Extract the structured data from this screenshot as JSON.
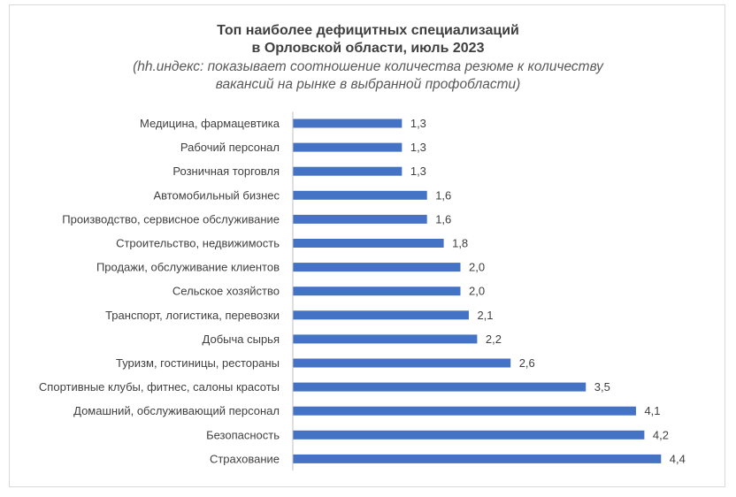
{
  "chart_data": {
    "type": "bar",
    "orientation": "horizontal",
    "title": "Топ наиболее дефицитных специализаций",
    "title_line2": "в Орловской области, июль 2023",
    "subtitle": "(hh.индекс: показывает соотношение количества резюме к количеству",
    "subtitle_line2": "вакансий на рынке в выбранной профобласти)",
    "bar_color": "#4472c4",
    "xlim": [
      0,
      4.5
    ],
    "grid": false,
    "categories": [
      "Медицина, фармацевтика",
      "Рабочий персонал",
      "Розничная торговля",
      "Автомобильный бизнес",
      "Производство, сервисное обслуживание",
      "Строительство, недвижимость",
      "Продажи, обслуживание клиентов",
      "Сельское хозяйство",
      "Транспорт, логистика, перевозки",
      "Добыча сырья",
      "Туризм, гостиницы, рестораны",
      "Спортивные клубы, фитнес, салоны красоты",
      "Домашний, обслуживающий персонал",
      "Безопасность",
      "Страхование"
    ],
    "values": [
      1.3,
      1.3,
      1.3,
      1.6,
      1.6,
      1.8,
      2.0,
      2.0,
      2.1,
      2.2,
      2.6,
      3.5,
      4.1,
      4.2,
      4.4
    ],
    "value_labels": [
      "1,3",
      "1,3",
      "1,3",
      "1,6",
      "1,6",
      "1,8",
      "2,0",
      "2,0",
      "2,1",
      "2,2",
      "2,6",
      "3,5",
      "4,1",
      "4,2",
      "4,4"
    ]
  }
}
